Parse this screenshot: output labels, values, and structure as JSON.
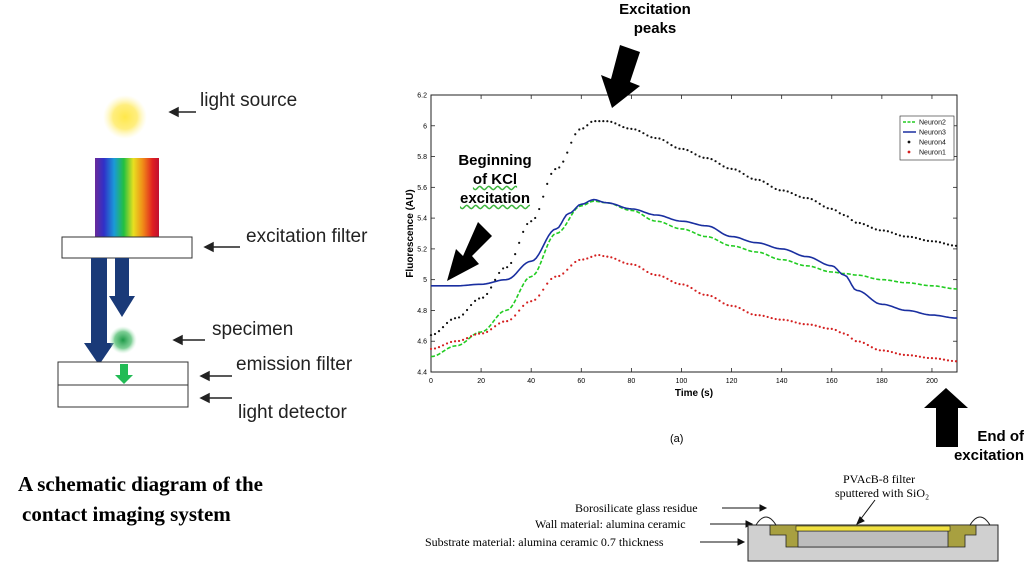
{
  "left_diagram": {
    "labels": {
      "light_source": "light source",
      "excitation_filter": "excitation filter",
      "specimen": "specimen",
      "emission_filter": "emission filter",
      "light_detector": "light detector"
    },
    "caption_line1": "A schematic diagram of the",
    "caption_line2": "contact imaging system"
  },
  "annotations": {
    "excitation_peaks_1": "Excitation",
    "excitation_peaks_2": "peaks",
    "beginning_1": "Beginning",
    "beginning_2": "of KCl",
    "beginning_3": "excitation",
    "end_1": "End of",
    "end_2": "excitation"
  },
  "chart_data": {
    "type": "line",
    "title": "",
    "xlabel": "Time (s)",
    "ylabel": "Fluorescence (AU)",
    "caption": "(a)",
    "xlim": [
      0,
      210
    ],
    "ylim": [
      4.4,
      6.2
    ],
    "xticks": [
      0,
      20,
      40,
      60,
      80,
      100,
      120,
      140,
      160,
      180,
      200
    ],
    "yticks": [
      4.4,
      4.6,
      4.8,
      5,
      5.2,
      5.4,
      5.6,
      5.8,
      6,
      6.2
    ],
    "legend_position": "top-right",
    "series": [
      {
        "name": "Neuron2",
        "color": "#22cc22",
        "style": "dashed",
        "x": [
          0,
          10,
          20,
          30,
          40,
          50,
          60,
          65,
          70,
          80,
          90,
          100,
          110,
          120,
          130,
          140,
          150,
          160,
          165,
          170,
          180,
          190,
          200,
          210
        ],
        "y": [
          4.5,
          4.57,
          4.66,
          4.8,
          5.02,
          5.3,
          5.48,
          5.51,
          5.5,
          5.45,
          5.38,
          5.33,
          5.28,
          5.22,
          5.18,
          5.13,
          5.09,
          5.05,
          5.04,
          5.03,
          5.0,
          4.98,
          4.96,
          4.94
        ]
      },
      {
        "name": "Neuron3",
        "color": "#1a2fa0",
        "style": "solid",
        "x": [
          0,
          10,
          20,
          30,
          40,
          50,
          55,
          60,
          65,
          70,
          80,
          90,
          100,
          110,
          120,
          130,
          140,
          150,
          160,
          165,
          170,
          180,
          190,
          200,
          210
        ],
        "y": [
          4.96,
          4.96,
          4.97,
          5.0,
          5.12,
          5.33,
          5.43,
          5.49,
          5.52,
          5.5,
          5.46,
          5.42,
          5.38,
          5.35,
          5.28,
          5.24,
          5.2,
          5.15,
          5.09,
          5.03,
          4.93,
          4.84,
          4.8,
          4.77,
          4.75
        ]
      },
      {
        "name": "Neuron4",
        "color": "#111111",
        "style": "dotted",
        "x": [
          0,
          10,
          20,
          30,
          40,
          50,
          60,
          65,
          70,
          80,
          90,
          100,
          110,
          120,
          130,
          140,
          150,
          160,
          165,
          170,
          180,
          190,
          200,
          210
        ],
        "y": [
          4.64,
          4.75,
          4.88,
          5.08,
          5.38,
          5.72,
          5.98,
          6.03,
          6.03,
          5.98,
          5.92,
          5.85,
          5.79,
          5.72,
          5.65,
          5.58,
          5.53,
          5.46,
          5.42,
          5.37,
          5.32,
          5.28,
          5.25,
          5.22
        ]
      },
      {
        "name": "Neuron1",
        "color": "#d42020",
        "style": "dotted",
        "x": [
          0,
          10,
          20,
          30,
          40,
          50,
          60,
          67,
          70,
          80,
          90,
          100,
          110,
          120,
          130,
          140,
          150,
          160,
          165,
          170,
          180,
          190,
          200,
          210
        ],
        "y": [
          4.55,
          4.6,
          4.65,
          4.73,
          4.86,
          5.02,
          5.13,
          5.16,
          5.15,
          5.1,
          5.03,
          4.97,
          4.9,
          4.83,
          4.77,
          4.74,
          4.71,
          4.68,
          4.65,
          4.6,
          4.54,
          4.51,
          4.49,
          4.47
        ]
      }
    ]
  },
  "cross_section": {
    "filter_label_1": "PVAcB-8 filter",
    "filter_label_2": "sputtered with SiO₂",
    "borosilicate": "Borosilicate glass residue",
    "wall": "Wall material: alumina ceramic",
    "substrate": "Substrate material: alumina ceramic 0.7 thickness"
  },
  "colors": {
    "arrow_navy": "#1a3a78",
    "emission_green": "#22bb55",
    "filter_yellow": "#f0e040",
    "filter_olive": "#a8a040"
  }
}
